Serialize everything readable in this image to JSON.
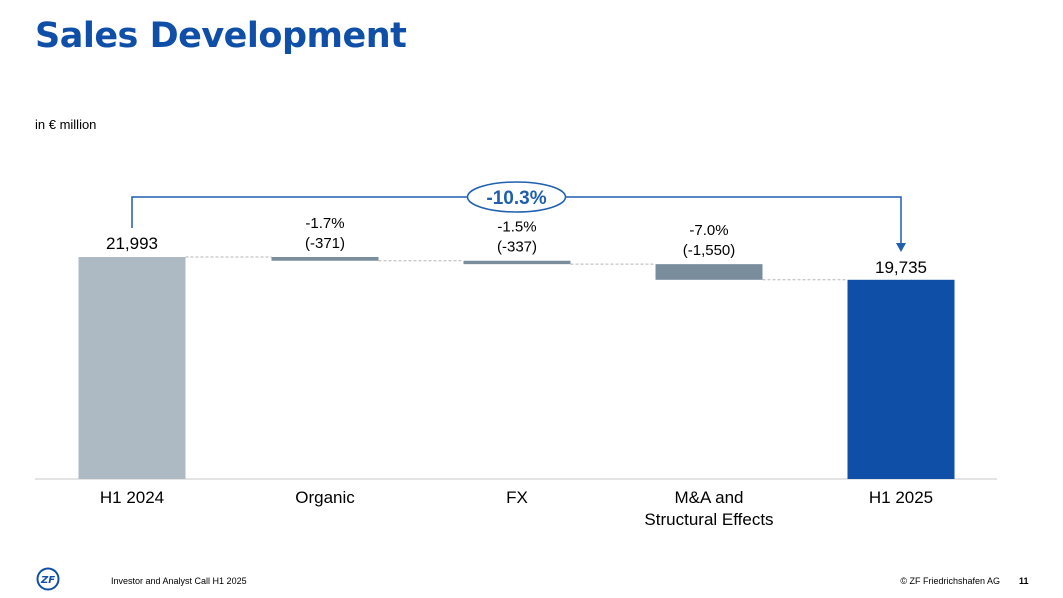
{
  "page": {
    "title": "Sales Development",
    "unit_label": "in € million",
    "footer_left": "Investor and Analyst Call H1 2025",
    "footer_right": "© ZF Friedrichshafen AG",
    "page_number": "11",
    "logo_text": "ZF",
    "colors": {
      "title": "#0F4FA8",
      "start_bar": "#ADB9C3",
      "delta_bar": "#7A8D9C",
      "end_bar": "#0F4FA8",
      "bracket": "#1F5FAE"
    }
  },
  "chart_data": {
    "type": "waterfall",
    "title": "Sales Development",
    "ylabel": "in € million",
    "ylim": [
      0,
      25000
    ],
    "total_change_label": "-10.3%",
    "categories": [
      "H1 2024",
      "Organic",
      "FX",
      "M&A and\nStructural Effects",
      "H1 2025"
    ],
    "start": {
      "category": "H1 2024",
      "value": 21993,
      "label": "21,993"
    },
    "deltas": [
      {
        "category": "Organic",
        "value": -371,
        "pct_label": "-1.7%",
        "value_label": "(-371)"
      },
      {
        "category": "FX",
        "value": -337,
        "pct_label": "-1.5%",
        "value_label": "(-337)"
      },
      {
        "category": "M&A and\nStructural Effects",
        "value": -1550,
        "pct_label": "-7.0%",
        "value_label": "(-1,550)"
      }
    ],
    "end": {
      "category": "H1 2025",
      "value": 19735,
      "label": "19,735"
    }
  }
}
